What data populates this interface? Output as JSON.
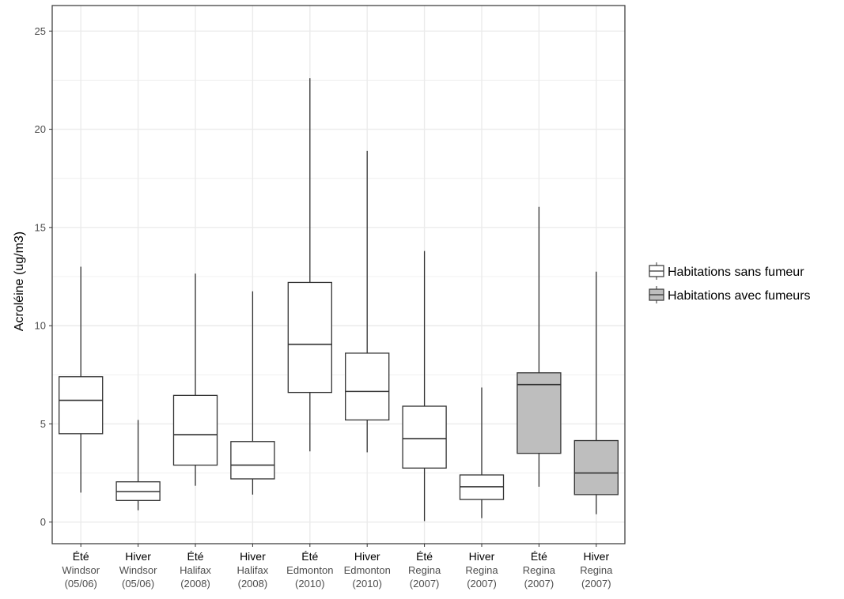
{
  "chart_data": {
    "type": "boxplot",
    "ylabel": "Acroléine  (ug/m3)",
    "xlabel": "",
    "ylim": [
      -1.1,
      26.3
    ],
    "yticks": [
      0,
      5,
      10,
      15,
      20,
      25
    ],
    "grid": true,
    "legend_position": "right",
    "colors": {
      "non_smoker": "#ffffff",
      "smoker": "#bebebe",
      "stroke": "#333333",
      "grid": "#ebebeb"
    },
    "series": [
      {
        "key": "non_smoker",
        "name": "Habitations sans fumeur"
      },
      {
        "key": "smoker",
        "name": "Habitations avec fumeurs"
      }
    ],
    "categories": [
      {
        "season": "Été",
        "city": "Windsor",
        "period": "(05/06)",
        "group": "non_smoker",
        "min": 1.5,
        "q1": 4.5,
        "median": 6.2,
        "q3": 7.4,
        "max": 13.0
      },
      {
        "season": "Hiver",
        "city": "Windsor",
        "period": "(05/06)",
        "group": "non_smoker",
        "min": 0.6,
        "q1": 1.1,
        "median": 1.55,
        "q3": 2.05,
        "max": 5.2
      },
      {
        "season": "Été",
        "city": "Halifax",
        "period": "(2008)",
        "group": "non_smoker",
        "min": 1.85,
        "q1": 2.9,
        "median": 4.45,
        "q3": 6.45,
        "max": 12.65
      },
      {
        "season": "Hiver",
        "city": "Halifax",
        "period": "(2008)",
        "group": "non_smoker",
        "min": 1.4,
        "q1": 2.2,
        "median": 2.9,
        "q3": 4.1,
        "max": 11.75
      },
      {
        "season": "Été",
        "city": "Edmonton",
        "period": "(2010)",
        "group": "non_smoker",
        "min": 3.6,
        "q1": 6.6,
        "median": 9.05,
        "q3": 12.2,
        "max": 22.6
      },
      {
        "season": "Hiver",
        "city": "Edmonton",
        "period": "(2010)",
        "group": "non_smoker",
        "min": 3.55,
        "q1": 5.2,
        "median": 6.65,
        "q3": 8.6,
        "max": 18.9
      },
      {
        "season": "Été",
        "city": "Regina",
        "period": "(2007)",
        "group": "non_smoker",
        "min": 0.05,
        "q1": 2.75,
        "median": 4.25,
        "q3": 5.9,
        "max": 13.8
      },
      {
        "season": "Hiver",
        "city": "Regina",
        "period": "(2007)",
        "group": "non_smoker",
        "min": 0.2,
        "q1": 1.15,
        "median": 1.8,
        "q3": 2.4,
        "max": 6.85
      },
      {
        "season": "Été",
        "city": "Regina",
        "period": "(2007)",
        "group": "smoker",
        "min": 1.8,
        "q1": 3.5,
        "median": 7.0,
        "q3": 7.6,
        "max": 16.05
      },
      {
        "season": "Hiver",
        "city": "Regina",
        "period": "(2007)",
        "group": "smoker",
        "min": 0.4,
        "q1": 1.4,
        "median": 2.5,
        "q3": 4.15,
        "max": 12.75
      }
    ]
  }
}
